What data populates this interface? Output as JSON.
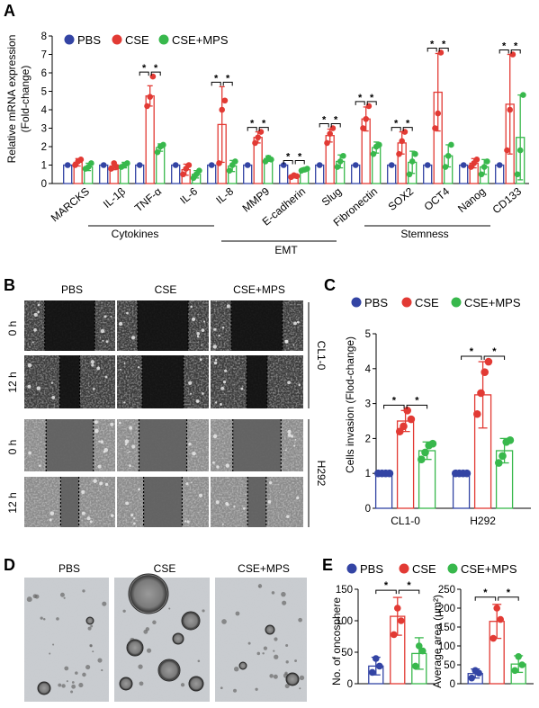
{
  "colors": {
    "pbs": "#3344a4",
    "cse": "#e23a34",
    "cse_mps": "#38b84c"
  },
  "panels": {
    "A": "A",
    "B": "B",
    "C": "C",
    "D": "D",
    "E": "E"
  },
  "legend": {
    "pbs": "PBS",
    "cse": "CSE",
    "cse_mps": "CSE+MPS"
  },
  "groups": {
    "cytokines": "Cytokines",
    "emt": "EMT",
    "stemness": "Stemness"
  },
  "panelB": {
    "col_labels": [
      "PBS",
      "CSE",
      "CSE+MPS"
    ],
    "row_labels": [
      "0 h",
      "12 h",
      "0 h",
      "12 h"
    ],
    "cell_lines": [
      "CL1-0",
      "H292"
    ]
  },
  "panelD": {
    "col_labels": [
      "PBS",
      "CSE",
      "CSE+MPS"
    ]
  },
  "chart_data": [
    {
      "id": "A",
      "type": "bar",
      "ylabel_line1": "Relative mRNA expression",
      "ylabel_line2": "(Fold-change)",
      "ylim": [
        0,
        8
      ],
      "yticks": [
        0,
        1,
        2,
        3,
        4,
        5,
        6,
        7,
        8
      ],
      "categories": [
        "MARCKS",
        "IL-1β",
        "TNF-α",
        "IL-6",
        "IL-8",
        "MMP9",
        "E-cadherin",
        "Slug",
        "Fibronectin",
        "SOX2",
        "OCT4",
        "Nanog",
        "CD133"
      ],
      "series": [
        {
          "name": "PBS",
          "values": [
            1,
            1,
            1,
            1,
            1,
            1,
            1,
            1,
            1,
            1,
            1,
            1,
            1
          ],
          "err": [
            0,
            0,
            0,
            0,
            0,
            0,
            0,
            0,
            0,
            0,
            0,
            0,
            0
          ],
          "points": [
            [
              1
            ],
            [
              1
            ],
            [
              1
            ],
            [
              1
            ],
            [
              1
            ],
            [
              1
            ],
            [
              1
            ],
            [
              1
            ],
            [
              1
            ],
            [
              1
            ],
            [
              1
            ],
            [
              1
            ],
            [
              1
            ]
          ]
        },
        {
          "name": "CSE",
          "values": [
            1.15,
            0.95,
            4.75,
            0.75,
            3.2,
            2.5,
            0.4,
            2.6,
            3.5,
            2.2,
            4.95,
            1.1,
            4.3
          ],
          "err": [
            0.2,
            0.2,
            0.55,
            0.3,
            2.05,
            0.3,
            0.1,
            0.35,
            0.65,
            0.6,
            2.1,
            0.25,
            2.7
          ],
          "points": [
            [
              1.0,
              1.2,
              1.3
            ],
            [
              0.8,
              1.1,
              0.9
            ],
            [
              4.2,
              4.7,
              5.8
            ],
            [
              0.5,
              0.8,
              1.0
            ],
            [
              1.1,
              4.0,
              4.5
            ],
            [
              2.2,
              2.5,
              2.8
            ],
            [
              0.35,
              0.45,
              0.4
            ],
            [
              2.2,
              2.7,
              3.0
            ],
            [
              3.0,
              3.5,
              4.2
            ],
            [
              1.6,
              2.3,
              2.8
            ],
            [
              3.0,
              3.8,
              7.1
            ],
            [
              0.9,
              1.1,
              1.3
            ],
            [
              1.8,
              4.0,
              7.0
            ]
          ]
        },
        {
          "name": "CSE+MPS",
          "values": [
            0.9,
            1.0,
            1.95,
            0.5,
            0.95,
            1.35,
            0.75,
            1.2,
            1.95,
            1.15,
            1.5,
            0.9,
            2.5
          ],
          "err": [
            0.2,
            0.15,
            0.2,
            0.2,
            0.3,
            0.15,
            0.1,
            0.35,
            0.3,
            0.6,
            0.6,
            0.4,
            2.3
          ],
          "points": [
            [
              0.8,
              0.9,
              1.1
            ],
            [
              0.9,
              1.0,
              1.1
            ],
            [
              1.7,
              2.0,
              2.1
            ],
            [
              0.3,
              0.5,
              0.7
            ],
            [
              0.7,
              1.0,
              1.2
            ],
            [
              1.2,
              1.4,
              1.3
            ],
            [
              0.7,
              0.75,
              0.8
            ],
            [
              0.9,
              1.2,
              1.5
            ],
            [
              1.6,
              2.0,
              2.1
            ],
            [
              0.5,
              1.2,
              1.6
            ],
            [
              0.9,
              1.5,
              2.1
            ],
            [
              0.5,
              0.9,
              1.2
            ],
            [
              0.5,
              1.8,
              4.8
            ]
          ]
        }
      ]
    },
    {
      "id": "C",
      "type": "bar",
      "ylabel": "Cells invasion (Flod-change)",
      "ylim": [
        0,
        5
      ],
      "yticks": [
        0,
        1,
        2,
        3,
        4,
        5
      ],
      "categories": [
        "CL1-0",
        "H292"
      ],
      "series": [
        {
          "name": "PBS",
          "values": [
            1,
            1
          ],
          "err": [
            0,
            0
          ],
          "points": [
            [
              1,
              1,
              1,
              1
            ],
            [
              1,
              1,
              1,
              1
            ]
          ]
        },
        {
          "name": "CSE",
          "values": [
            2.5,
            3.25
          ],
          "err": [
            0.3,
            0.95
          ],
          "points": [
            [
              2.2,
              2.35,
              2.8,
              2.55
            ],
            [
              2.7,
              3.3,
              3.9,
              4.2
            ]
          ]
        },
        {
          "name": "CSE+MPS",
          "values": [
            1.65,
            1.65
          ],
          "err": [
            0.25,
            0.35
          ],
          "points": [
            [
              1.4,
              1.6,
              1.8,
              1.85
            ],
            [
              1.3,
              1.5,
              1.9,
              1.95
            ]
          ]
        }
      ]
    },
    {
      "id": "E1",
      "type": "bar",
      "ylabel": "No. of oncosphere",
      "ylim": [
        0,
        150
      ],
      "yticks": [
        0,
        50,
        100,
        150
      ],
      "categories": [
        ""
      ],
      "series": [
        {
          "name": "PBS",
          "values": [
            28
          ],
          "err": [
            14
          ],
          "points": [
            [
              18,
              40,
              28
            ]
          ]
        },
        {
          "name": "CSE",
          "values": [
            107
          ],
          "err": [
            30
          ],
          "points": [
            [
              78,
              120,
              100
            ]
          ]
        },
        {
          "name": "CSE+MPS",
          "values": [
            48
          ],
          "err": [
            25
          ],
          "points": [
            [
              28,
              60,
              52
            ]
          ]
        }
      ]
    },
    {
      "id": "E2",
      "type": "bar",
      "ylabel": "Average area (μm²)",
      "ylim": [
        0,
        250
      ],
      "yticks": [
        0,
        50,
        100,
        150,
        200,
        250
      ],
      "categories": [
        ""
      ],
      "series": [
        {
          "name": "PBS",
          "values": [
            27
          ],
          "err": [
            12
          ],
          "points": [
            [
              15,
              35,
              28
            ]
          ]
        },
        {
          "name": "CSE",
          "values": [
            165
          ],
          "err": [
            45
          ],
          "points": [
            [
              120,
              200,
              170
            ]
          ]
        },
        {
          "name": "CSE+MPS",
          "values": [
            52
          ],
          "err": [
            22
          ],
          "points": [
            [
              35,
              72,
              50
            ]
          ]
        }
      ]
    }
  ]
}
